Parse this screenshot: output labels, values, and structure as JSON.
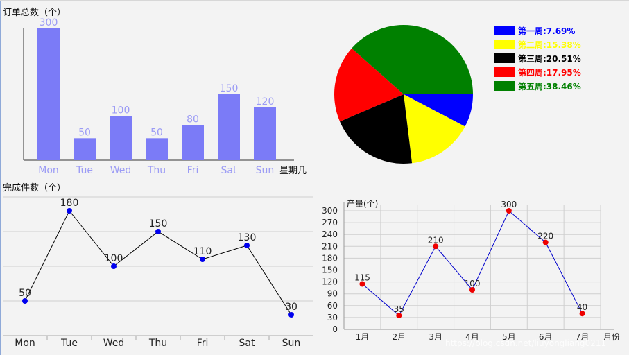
{
  "watermark": "https://blog.csdn.net/liuyongliang0211",
  "chart_data": [
    {
      "type": "bar",
      "title": "订单总数（个）",
      "xlabel": "星期几",
      "categories": [
        "Mon",
        "Tue",
        "Wed",
        "Thu",
        "Fri",
        "Sat",
        "Sun"
      ],
      "values": [
        300,
        50,
        100,
        50,
        80,
        150,
        120
      ],
      "ylim": [
        0,
        300
      ],
      "color": "#7b7bf7",
      "label_color": "#9b9bf5"
    },
    {
      "type": "pie",
      "slices": [
        {
          "label": "第一周:7.69%",
          "value": 7.69,
          "color": "#0000ff"
        },
        {
          "label": "第二周:15.38%",
          "value": 15.38,
          "color": "#ffff00"
        },
        {
          "label": "第三周:20.51%",
          "value": 20.51,
          "color": "#000000"
        },
        {
          "label": "第四周:17.95%",
          "value": 17.95,
          "color": "#ff0000"
        },
        {
          "label": "第五周:38.46%",
          "value": 38.46,
          "color": "#008000"
        }
      ],
      "legend": "right"
    },
    {
      "type": "line",
      "title": "完成件数（个）",
      "categories": [
        "Mon",
        "Tue",
        "Wed",
        "Thu",
        "Fri",
        "Sat",
        "Sun"
      ],
      "values": [
        50,
        180,
        100,
        150,
        110,
        130,
        30
      ],
      "ylim": [
        0,
        200
      ],
      "grid": true,
      "line_color": "#000000",
      "point_color": "#0000ee"
    },
    {
      "type": "line",
      "title": "产量(个)",
      "xlabel": "月份",
      "categories": [
        "1月",
        "2月",
        "3月",
        "4月",
        "5月",
        "6月",
        "7月"
      ],
      "values": [
        115,
        35,
        210,
        100,
        300,
        220,
        40
      ],
      "yticks": [
        0,
        30,
        60,
        90,
        120,
        150,
        180,
        210,
        240,
        270,
        300
      ],
      "ylim": [
        0,
        300
      ],
      "grid": true,
      "line_color": "#0000cc",
      "point_color": "#ee0000"
    }
  ]
}
